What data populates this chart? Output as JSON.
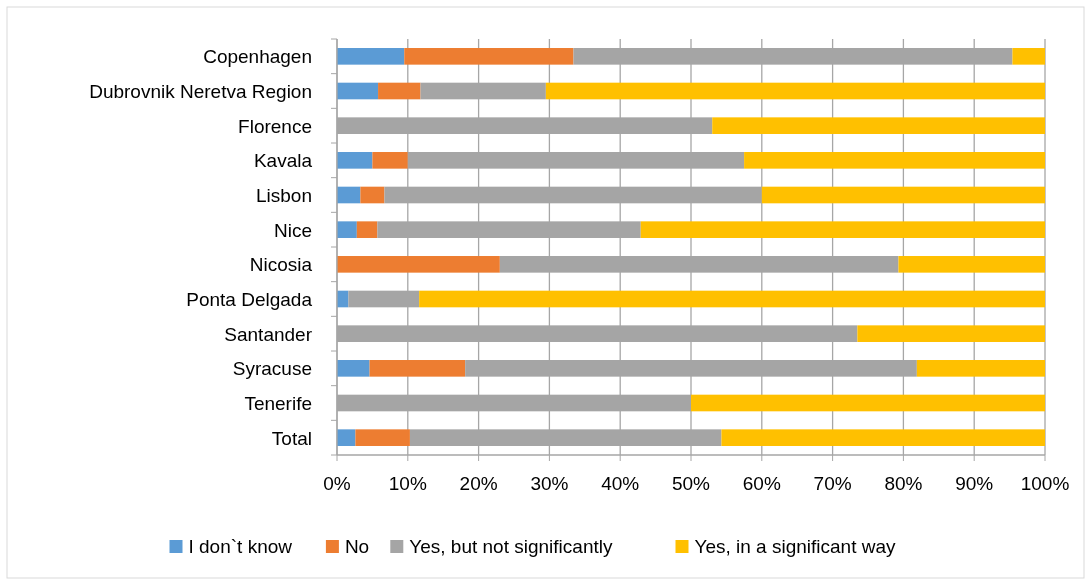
{
  "chart_data": {
    "type": "bar",
    "orientation": "horizontal",
    "stacked": true,
    "categories": [
      "Copenhagen",
      "Dubrovnik Neretva Region",
      "Florence",
      "Kavala",
      "Lisbon",
      "Nice",
      "Nicosia",
      "Ponta Delgada",
      "Santander",
      "Syracuse",
      "Tenerife",
      "Total"
    ],
    "series": [
      {
        "name": "I don`t know",
        "color": "#5b9bd5",
        "values": [
          9.5,
          5.8,
          0,
          5,
          3.3,
          2.8,
          0,
          1.6,
          0,
          4.6,
          0,
          2.6
        ]
      },
      {
        "name": "No",
        "color": "#ed7d31",
        "values": [
          23.9,
          6,
          0,
          5,
          3.4,
          2.9,
          23,
          0,
          0,
          13.5,
          0,
          7.7
        ]
      },
      {
        "name": "Yes, but not significantly",
        "color": "#a5a5a5",
        "values": [
          62,
          17.7,
          53,
          47.5,
          53.3,
          37.2,
          56.3,
          10,
          73.5,
          63.8,
          50,
          44
        ]
      },
      {
        "name": "Yes, in a significant way",
        "color": "#ffc000",
        "values": [
          4.6,
          70.5,
          47,
          42.5,
          40,
          57.1,
          20.7,
          88.4,
          26.5,
          18.1,
          50,
          45.7
        ]
      }
    ],
    "xlim": [
      0,
      100
    ],
    "xticks": [
      {
        "value": 0,
        "label": "0%"
      },
      {
        "value": 10,
        "label": "10%"
      },
      {
        "value": 20,
        "label": "20%"
      },
      {
        "value": 30,
        "label": "30%"
      },
      {
        "value": 40,
        "label": "40%"
      },
      {
        "value": 50,
        "label": "50%"
      },
      {
        "value": 60,
        "label": "60%"
      },
      {
        "value": 70,
        "label": "70%"
      },
      {
        "value": 80,
        "label": "80%"
      },
      {
        "value": 90,
        "label": "90%"
      },
      {
        "value": 100,
        "label": "100%"
      }
    ],
    "grid": "x",
    "legend": "bottom"
  }
}
